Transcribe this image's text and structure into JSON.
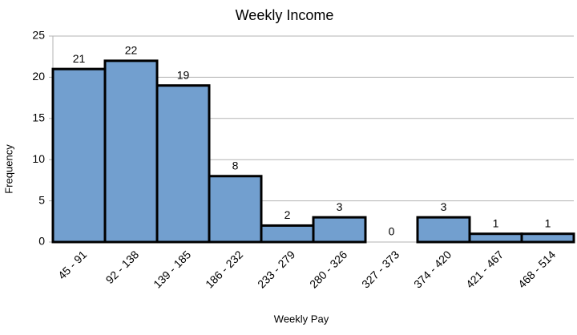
{
  "chart_data": {
    "type": "bar",
    "title": "Weekly Income",
    "x_label": "Weekly Pay",
    "y_label": "Frequency",
    "categories": [
      "45 - 91",
      "92 - 138",
      "139 - 185",
      "186 - 232",
      "233 - 279",
      "280 - 326",
      "327 - 373",
      "374 - 420",
      "421 - 467",
      "468 - 514"
    ],
    "values": [
      21,
      22,
      19,
      8,
      2,
      3,
      0,
      3,
      1,
      1
    ],
    "color": "#729fcf",
    "ylim": [
      0,
      25
    ],
    "yticks": [
      0,
      5,
      10,
      15,
      20,
      25
    ],
    "grid": true
  }
}
